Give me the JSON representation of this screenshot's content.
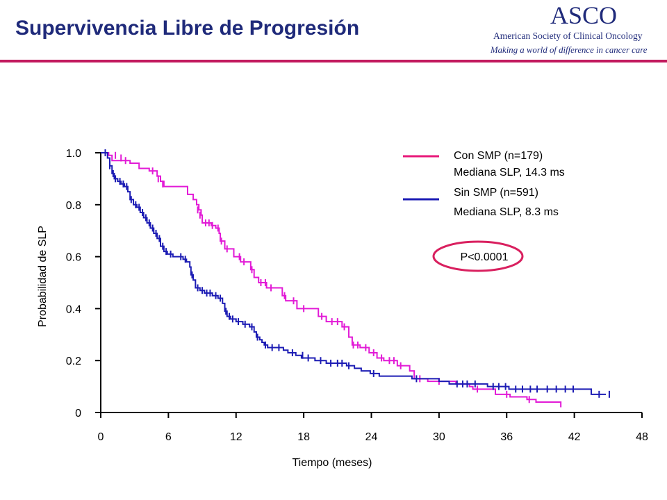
{
  "slide": {
    "title": "Supervivencia Libre de Progresión",
    "logo": {
      "mark": "ASCO",
      "org": "American Society of Clinical Oncology",
      "tagline": "Making a world of difference in cancer care"
    },
    "accent_color": "#c21a5e",
    "title_color": "#1f2a7a"
  },
  "chart_data": {
    "type": "line",
    "subtype": "kaplan-meier step curves with censor ticks",
    "title": "",
    "xlabel": "Tiempo (meses)",
    "ylabel": "Probabilidad de SLP",
    "xlim": [
      0,
      48
    ],
    "ylim": [
      0,
      1.0
    ],
    "xticks": [
      0,
      6,
      12,
      18,
      24,
      30,
      36,
      42,
      48
    ],
    "xtick_labels": [
      "0",
      "6",
      "12",
      "18",
      "24",
      "30",
      "36",
      "42",
      "48"
    ],
    "yticks": [
      0,
      0.2,
      0.4,
      0.6,
      0.8,
      1.0
    ],
    "ytick_labels": [
      "0",
      "0.2",
      "0.4",
      "0.6",
      "0.8",
      "1.0"
    ],
    "grid": false,
    "legend_position": "top-right",
    "series": [
      {
        "label_lines": [
          "Con SMP (n=179)",
          "Mediana SLP, 14.3 ms"
        ],
        "color": "#e21ad6",
        "legend_color": "#e8197a",
        "steps": [
          [
            0,
            1.0
          ],
          [
            0.7,
            0.99
          ],
          [
            1.0,
            0.97
          ],
          [
            2.6,
            0.96
          ],
          [
            3.4,
            0.94
          ],
          [
            4.3,
            0.93
          ],
          [
            5.0,
            0.91
          ],
          [
            5.3,
            0.89
          ],
          [
            5.6,
            0.87
          ],
          [
            7.7,
            0.84
          ],
          [
            8.2,
            0.82
          ],
          [
            8.5,
            0.8
          ],
          [
            8.7,
            0.78
          ],
          [
            8.9,
            0.76
          ],
          [
            9.0,
            0.73
          ],
          [
            9.8,
            0.72
          ],
          [
            10.2,
            0.71
          ],
          [
            10.5,
            0.69
          ],
          [
            10.6,
            0.66
          ],
          [
            11.0,
            0.63
          ],
          [
            11.8,
            0.6
          ],
          [
            12.4,
            0.58
          ],
          [
            13.3,
            0.55
          ],
          [
            13.6,
            0.52
          ],
          [
            14.0,
            0.5
          ],
          [
            14.7,
            0.48
          ],
          [
            16.1,
            0.45
          ],
          [
            16.4,
            0.43
          ],
          [
            17.4,
            0.4
          ],
          [
            19.3,
            0.37
          ],
          [
            20.0,
            0.35
          ],
          [
            21.4,
            0.33
          ],
          [
            22.0,
            0.29
          ],
          [
            22.3,
            0.26
          ],
          [
            23.0,
            0.25
          ],
          [
            23.8,
            0.23
          ],
          [
            24.5,
            0.21
          ],
          [
            25.1,
            0.2
          ],
          [
            26.3,
            0.18
          ],
          [
            27.4,
            0.16
          ],
          [
            27.8,
            0.13
          ],
          [
            29.0,
            0.12
          ],
          [
            31.5,
            0.11
          ],
          [
            32.7,
            0.1
          ],
          [
            33.0,
            0.09
          ],
          [
            35.0,
            0.07
          ],
          [
            36.3,
            0.06
          ],
          [
            37.8,
            0.05
          ],
          [
            38.6,
            0.04
          ],
          [
            40.8,
            0.02
          ],
          [
            40.8,
            0.02
          ]
        ],
        "censors": [
          [
            1.3,
            0.99
          ],
          [
            1.8,
            0.98
          ],
          [
            2.2,
            0.97
          ],
          [
            4.6,
            0.93
          ],
          [
            5.1,
            0.9
          ],
          [
            5.5,
            0.88
          ],
          [
            8.6,
            0.78
          ],
          [
            8.8,
            0.76
          ],
          [
            9.3,
            0.73
          ],
          [
            9.6,
            0.73
          ],
          [
            9.9,
            0.72
          ],
          [
            10.4,
            0.71
          ],
          [
            10.7,
            0.66
          ],
          [
            11.2,
            0.63
          ],
          [
            12.3,
            0.6
          ],
          [
            12.7,
            0.58
          ],
          [
            13.4,
            0.55
          ],
          [
            14.2,
            0.5
          ],
          [
            14.6,
            0.5
          ],
          [
            15.1,
            0.48
          ],
          [
            16.3,
            0.45
          ],
          [
            17.1,
            0.43
          ],
          [
            18.0,
            0.4
          ],
          [
            19.6,
            0.37
          ],
          [
            20.5,
            0.35
          ],
          [
            21.0,
            0.35
          ],
          [
            21.6,
            0.33
          ],
          [
            22.4,
            0.26
          ],
          [
            22.8,
            0.26
          ],
          [
            23.5,
            0.25
          ],
          [
            24.2,
            0.23
          ],
          [
            24.9,
            0.21
          ],
          [
            25.6,
            0.2
          ],
          [
            26.0,
            0.2
          ],
          [
            26.6,
            0.18
          ],
          [
            28.3,
            0.13
          ],
          [
            30.0,
            0.12
          ],
          [
            33.4,
            0.09
          ],
          [
            36.0,
            0.07
          ],
          [
            38.0,
            0.05
          ]
        ]
      },
      {
        "label_lines": [
          "Sin SMP (n=591)",
          "Mediana SLP, 8.3 ms"
        ],
        "color": "#1c1cb4",
        "legend_color": "#1c1cb4",
        "steps": [
          [
            0,
            1.0
          ],
          [
            0.6,
            0.98
          ],
          [
            0.8,
            0.95
          ],
          [
            1.0,
            0.92
          ],
          [
            1.2,
            0.9
          ],
          [
            1.5,
            0.89
          ],
          [
            1.8,
            0.88
          ],
          [
            2.1,
            0.87
          ],
          [
            2.4,
            0.85
          ],
          [
            2.6,
            0.82
          ],
          [
            2.9,
            0.8
          ],
          [
            3.2,
            0.79
          ],
          [
            3.5,
            0.77
          ],
          [
            3.8,
            0.75
          ],
          [
            4.1,
            0.73
          ],
          [
            4.4,
            0.71
          ],
          [
            4.7,
            0.69
          ],
          [
            5.0,
            0.67
          ],
          [
            5.3,
            0.64
          ],
          [
            5.6,
            0.62
          ],
          [
            5.9,
            0.61
          ],
          [
            6.4,
            0.6
          ],
          [
            7.3,
            0.59
          ],
          [
            7.6,
            0.58
          ],
          [
            7.9,
            0.56
          ],
          [
            8.0,
            0.53
          ],
          [
            8.2,
            0.51
          ],
          [
            8.4,
            0.48
          ],
          [
            8.8,
            0.47
          ],
          [
            9.2,
            0.46
          ],
          [
            9.9,
            0.45
          ],
          [
            10.4,
            0.44
          ],
          [
            10.8,
            0.42
          ],
          [
            11.0,
            0.39
          ],
          [
            11.2,
            0.37
          ],
          [
            11.5,
            0.36
          ],
          [
            12.0,
            0.35
          ],
          [
            12.6,
            0.34
          ],
          [
            13.2,
            0.33
          ],
          [
            13.6,
            0.31
          ],
          [
            13.8,
            0.29
          ],
          [
            14.1,
            0.28
          ],
          [
            14.3,
            0.27
          ],
          [
            14.5,
            0.26
          ],
          [
            14.8,
            0.25
          ],
          [
            16.2,
            0.24
          ],
          [
            16.6,
            0.23
          ],
          [
            17.3,
            0.22
          ],
          [
            17.8,
            0.21
          ],
          [
            19.0,
            0.2
          ],
          [
            20.0,
            0.19
          ],
          [
            21.8,
            0.18
          ],
          [
            22.5,
            0.17
          ],
          [
            23.1,
            0.16
          ],
          [
            23.9,
            0.15
          ],
          [
            24.7,
            0.14
          ],
          [
            27.6,
            0.13
          ],
          [
            30.0,
            0.12
          ],
          [
            30.9,
            0.11
          ],
          [
            34.3,
            0.1
          ],
          [
            36.2,
            0.09
          ],
          [
            43.5,
            0.07
          ],
          [
            44.8,
            0.07
          ]
        ],
        "censors": [
          [
            0.4,
            1.0
          ],
          [
            0.8,
            0.95
          ],
          [
            1.1,
            0.92
          ],
          [
            1.3,
            0.9
          ],
          [
            1.7,
            0.89
          ],
          [
            2.0,
            0.88
          ],
          [
            2.3,
            0.87
          ],
          [
            2.7,
            0.82
          ],
          [
            3.1,
            0.8
          ],
          [
            3.4,
            0.79
          ],
          [
            3.7,
            0.77
          ],
          [
            4.0,
            0.75
          ],
          [
            4.3,
            0.73
          ],
          [
            4.6,
            0.71
          ],
          [
            4.9,
            0.69
          ],
          [
            5.2,
            0.67
          ],
          [
            5.5,
            0.64
          ],
          [
            5.8,
            0.62
          ],
          [
            6.2,
            0.61
          ],
          [
            7.1,
            0.6
          ],
          [
            7.5,
            0.59
          ],
          [
            8.1,
            0.53
          ],
          [
            8.6,
            0.48
          ],
          [
            9.0,
            0.47
          ],
          [
            9.4,
            0.46
          ],
          [
            9.7,
            0.46
          ],
          [
            10.2,
            0.45
          ],
          [
            10.6,
            0.44
          ],
          [
            11.1,
            0.39
          ],
          [
            11.4,
            0.37
          ],
          [
            11.7,
            0.36
          ],
          [
            12.2,
            0.35
          ],
          [
            12.8,
            0.34
          ],
          [
            13.4,
            0.33
          ],
          [
            13.9,
            0.29
          ],
          [
            14.6,
            0.26
          ],
          [
            15.2,
            0.25
          ],
          [
            15.8,
            0.25
          ],
          [
            17.0,
            0.23
          ],
          [
            17.9,
            0.22
          ],
          [
            18.4,
            0.21
          ],
          [
            19.5,
            0.2
          ],
          [
            20.4,
            0.19
          ],
          [
            21.0,
            0.19
          ],
          [
            21.4,
            0.19
          ],
          [
            22.0,
            0.18
          ],
          [
            24.2,
            0.15
          ],
          [
            28.0,
            0.13
          ],
          [
            31.6,
            0.11
          ],
          [
            32.1,
            0.11
          ],
          [
            32.5,
            0.11
          ],
          [
            33.2,
            0.11
          ],
          [
            34.8,
            0.1
          ],
          [
            35.3,
            0.1
          ],
          [
            35.9,
            0.1
          ],
          [
            36.8,
            0.09
          ],
          [
            37.4,
            0.09
          ],
          [
            38.1,
            0.09
          ],
          [
            38.7,
            0.09
          ],
          [
            39.6,
            0.09
          ],
          [
            40.4,
            0.09
          ],
          [
            41.2,
            0.09
          ],
          [
            41.9,
            0.09
          ],
          [
            44.2,
            0.07
          ],
          [
            45.1,
            0.07
          ]
        ]
      }
    ],
    "annotation": {
      "text": "P<0.0001",
      "outline_color": "#d9205f"
    }
  }
}
